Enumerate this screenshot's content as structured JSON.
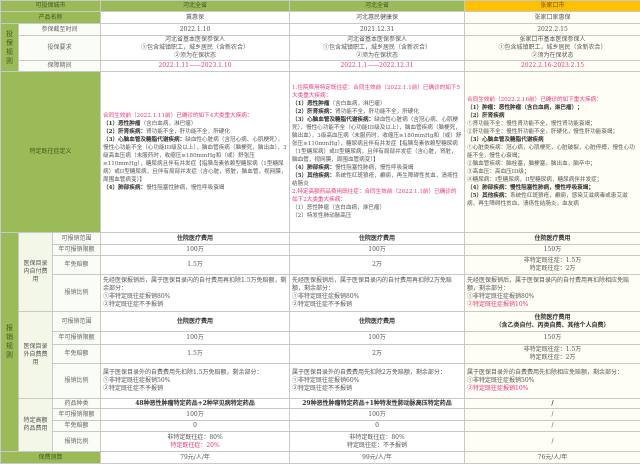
{
  "header": {
    "label": "可投保城市",
    "cities": [
      "河北全省",
      "河北全省",
      "张家口市"
    ]
  },
  "product": {
    "label": "产品名称",
    "names": [
      "冀惠保",
      "河北惠民健康保",
      "张家口家惠保"
    ]
  },
  "rules": {
    "group": "投保规则",
    "deadline": {
      "label": "参保截至时间",
      "values": [
        "2022.1.10",
        "2021.12.31",
        "2022.2.15"
      ]
    },
    "requirement": {
      "label": "投保要求",
      "values": [
        [
          "河北省基本医保参保人",
          "①包含城镇职工，城乡居民（含新农合）",
          "②须为在保状态"
        ],
        [
          "河北省基本医保参保人",
          "①包含城镇职工，城乡居民（含新农合）",
          "②须为在保状态"
        ],
        [
          "张家口市基本医保参保人",
          "①包含城镇职工，城乡居民（含新农合）",
          "②须为在保状态"
        ]
      ]
    },
    "period": {
      "label": "保障期间",
      "values": [
        "2022.1.11——2023.1.10",
        "2022.1.1——2022.12.31",
        "2022.2.16-2023.2.15"
      ]
    }
  },
  "preexisting": {
    "label": "特定既往症定义",
    "col1": [
      {
        "t": "合同生效前（2022.1.11前）已确诊的如下4大类重大疾病：",
        "pink": true
      },
      {
        "h": "（1）恶性肿瘤",
        "t": "（含白血病，淋巴瘤）"
      },
      {
        "h": "（2）肝肾疾病：",
        "t": "肾功能不全，肝功能不全，肝硬化"
      },
      {
        "h": "（3）心脑血管及糖脂代谢疾病：",
        "t": "缺血性心脏病（含冠心病、心肌梗死），慢性心功能不全（心功能III级及以上），脑血管疾病（脑梗死，脑出血），3级高血压病（未服药时，收缩压≥180mmHg和（或）舒张压≥110mmHg），糖尿病且伴有并发症【指胰岛素依赖型糖尿病（1型糖尿病）或II型糖尿病，且伴有局部并发症（含心脏，肾脏，脑血管，视网膜，周围血管病变）】"
      },
      {
        "h": "（4）肺部疾病：",
        "t": "慢性阻塞性肺病，慢性呼吸衰竭"
      }
    ],
    "col2": [
      {
        "t": "1.住院费用特定既往症：合同生效前（2022.1.1前）已确诊的如下5大类重大疾病：",
        "pink": true
      },
      {
        "h": "（1）恶性肿瘤",
        "t": "（含白血病，淋巴瘤）"
      },
      {
        "h": "（2）肝肾疾病：",
        "t": "肾功能不全，肝功能不全，肝硬化"
      },
      {
        "h": "（3）心脑血管及糖脂代谢疾病：",
        "t": "缺血性心脏病（含冠心病、心肌梗死），慢性心功能不全（心功能III级及以上），脑血管疾病（脑梗死，脑出血），3级高血压病（未服药时，收缩压≥180mmHg和（或）舒张压≥110mmHg），糖尿病且伴有并发症【指胰岛素依赖型糖尿病（1型糖尿病）或II型糖尿病，且伴有局部并发症（含心脏，肾脏，脑血管，视网膜，周围血管病变）】"
      },
      {
        "h": "（4）肺部疾病：",
        "t": "慢性阻塞性肺病，慢性呼吸衰竭"
      },
      {
        "h": "（5）其他疾病：",
        "t": "系统性红斑狼疮，癫痫，再生障碍性贫血，溃疡性结肠炎"
      },
      {
        "t": "2.特定高额药品费用既往症：合同生效前（2022.1.1前）已确诊的如下2大类重大疾病：",
        "pink": true
      },
      {
        "t": "（1）恶性肿瘤（含白血病，淋巴瘤）"
      },
      {
        "t": "（2）特发性肺动脉高压"
      }
    ],
    "col3": [
      {
        "t": "合同生效前（2022.2.16前）已确诊的如下重大疾病：",
        "pink": true
      },
      {
        "h": "（1）肿瘤：恶性肿瘤（含白血病，淋巴瘤）；"
      },
      {
        "h": "（2）肝肾疾病"
      },
      {
        "t": "①肾功能不全：慢性肾功能不全，慢性肾功能衰竭；"
      },
      {
        "t": "②肝功能不全：慢性肝功能不全，肝硬化，慢性肝功能衰竭；"
      },
      {
        "h": "（3）心脑血管及糖脂代谢疾病"
      },
      {
        "t": "①心脏类疾病：冠心病，心肌梗死，心脏破裂，心脏停搏，慢性心功能不全，慢性心衰竭；"
      },
      {
        "t": "②脑血管疾病：脑栓塞，脑梗塞，脑出血，脑卒中；"
      },
      {
        "t": "③高血压：高血压III级；"
      },
      {
        "t": "④糖尿病：I型糖尿病，II型糖尿病，糖尿病伴并发症；"
      },
      {
        "h": "（4）肺部疾病：慢性阻塞性肺病，慢性呼吸衰竭；"
      },
      {
        "h": "（5）其他疾病：",
        "t": "系统性红斑狼疮，癫痫，感染艾滋病毒或患艾滋病，再生障碍性贫血，溃疡性结肠炎，血友病"
      }
    ]
  },
  "claims": {
    "group": "报销规则",
    "in_list": {
      "label": "医保目录内自付费用",
      "scope": {
        "label": "可报销范围",
        "values": [
          "住院医疗费用",
          "住院医疗费用",
          "住院医疗费用"
        ]
      },
      "limit": {
        "label": "年可报销限额",
        "values": [
          "100万",
          "100万",
          "150万"
        ]
      },
      "deductible": {
        "label": "年免赔额",
        "values": [
          [
            "1.5万"
          ],
          [
            "2万"
          ],
          [
            "非特定既往症：1.5万",
            "特定既往症：2万"
          ]
        ]
      },
      "ratio": {
        "label": "报销比例",
        "values": [
          [
            {
              "t": "先经医保报销后，属于医保目录内的自付费用再扣除1.5万免赔额，剩余部分："
            },
            {
              "t": "①非特定既往症报销80%"
            },
            {
              "t": "②特定既往症不予报销"
            }
          ],
          [
            {
              "t": "先经医保报销后，属于医保目录内的自付费用再扣除2万免赔额，剩余部分："
            },
            {
              "t": "①非特定既往症报销80%"
            },
            {
              "t": "②特定既往症不予报销"
            }
          ],
          [
            {
              "t": "先经医保报销后，属于医保目录内的自付费用再扣除相应免赔额，剩余部分："
            },
            {
              "t": "①非特定既往症报销80%"
            },
            {
              "t": "②特定既往症报销10%",
              "pink": true
            }
          ]
        ]
      }
    },
    "out_list": {
      "label": "医保目录外自费费用",
      "scope": {
        "label": "可报销范围",
        "values": [
          [
            "住院医疗费用"
          ],
          [
            "住院医疗费用"
          ],
          [
            "住院医疗费用",
            "（含乙类自付、丙类自费、其他个人自费）"
          ]
        ]
      },
      "limit": {
        "label": "年可报销限额",
        "values": [
          "100万",
          "100万",
          "150万"
        ]
      },
      "deductible": {
        "label": "年免赔额",
        "values": [
          [
            "1.5万"
          ],
          [
            "2万"
          ],
          [
            "非特定既往症：1.5万",
            "特定既往症：2万"
          ]
        ]
      },
      "ratio": {
        "label": "报销比例",
        "values": [
          [
            {
              "t": "属于医保目录外的自费费用先扣除1.5万免赔额，剩余部分："
            },
            {
              "t": "①非特定既往症报销50%"
            },
            {
              "t": "②特定既往症不予报销"
            }
          ],
          [
            {
              "t": "属于医保目录外的自费费用先扣除2万免赔额，剩余部分："
            },
            {
              "t": "①非特定既往症报销60%"
            },
            {
              "t": "②特定既往症不予报销"
            }
          ],
          [
            {
              "t": "属于医保目录外的自费费用先扣除相应免赔额，剩余部分："
            },
            {
              "t": "①非特定既往症报销50%"
            },
            {
              "t": "②特定既往症报销10%",
              "pink": true
            }
          ]
        ]
      }
    },
    "drugs": {
      "label": "特定高额药品费用",
      "kinds": {
        "label": "药品种类",
        "values": [
          "48种恶性肿瘤特定药品+2种罕见病特定药品",
          "29种恶性肿瘤特定药品+1种特发性肺动脉高压特定药品",
          "/"
        ]
      },
      "limit": {
        "label": "年可报销限额",
        "values": [
          "100万",
          "100万",
          "/"
        ]
      },
      "deductible": {
        "label": "年免赔额",
        "values": [
          "0",
          "0",
          "/"
        ]
      },
      "ratio": {
        "label": "报销比例",
        "values": [
          [
            {
              "t": "非特定既往症：80%"
            },
            {
              "t": "特定既往症：20%",
              "pink": true
            }
          ],
          [
            {
              "t": "非特定既往症：80%"
            },
            {
              "t": "特定既往症：不予报销"
            }
          ],
          [
            {
              "t": "/"
            }
          ]
        ]
      }
    }
  },
  "premium": {
    "label": "保费测算",
    "values": [
      "79元/人/年",
      "99元/人/年",
      "76元/人/年"
    ]
  },
  "colors": {
    "header_green": "#9bbb59",
    "header_yellow": "#ffc000",
    "highlight_pink": "#e8357a"
  }
}
